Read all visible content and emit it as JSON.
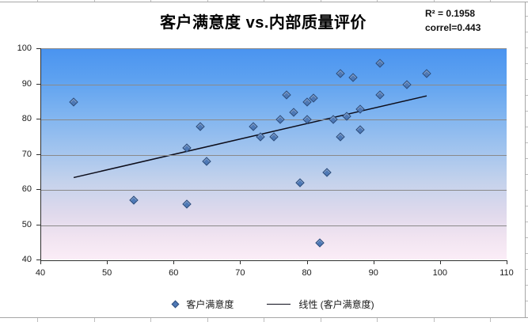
{
  "title": "客户满意度 vs.内部质量评价",
  "annotation": {
    "line1": "R² = 0.1958",
    "line2": "correl=0.443"
  },
  "legend": {
    "items": [
      {
        "label": "客户满意度",
        "marker": "diamond"
      },
      {
        "label": "线性 (客户满意度)",
        "marker": "line"
      }
    ]
  },
  "chart_data": {
    "type": "scatter",
    "title": "客户满意度 vs.内部质量评价",
    "xlabel": "",
    "ylabel": "",
    "xlim": [
      40,
      110
    ],
    "ylim": [
      40,
      100
    ],
    "x_ticks": [
      40,
      50,
      60,
      70,
      80,
      90,
      100,
      110
    ],
    "y_ticks": [
      40,
      50,
      60,
      70,
      80,
      90,
      100
    ],
    "grid": true,
    "legend_position": "bottom",
    "annotations": [
      "R² = 0.1958",
      "correl=0.443"
    ],
    "series": [
      {
        "name": "客户满意度",
        "points": [
          [
            45,
            85
          ],
          [
            54,
            57
          ],
          [
            62,
            56
          ],
          [
            62,
            72
          ],
          [
            64,
            78
          ],
          [
            65,
            68
          ],
          [
            72,
            78
          ],
          [
            73,
            75
          ],
          [
            75,
            75
          ],
          [
            76,
            80
          ],
          [
            77,
            87
          ],
          [
            78,
            82
          ],
          [
            79,
            62
          ],
          [
            80,
            80
          ],
          [
            80,
            85
          ],
          [
            81,
            86
          ],
          [
            82,
            45
          ],
          [
            83,
            65
          ],
          [
            84,
            80
          ],
          [
            85,
            75
          ],
          [
            85,
            93
          ],
          [
            86,
            81
          ],
          [
            87,
            92
          ],
          [
            88,
            77
          ],
          [
            88,
            83
          ],
          [
            91,
            87
          ],
          [
            91,
            96
          ],
          [
            95,
            90
          ],
          [
            98,
            93
          ]
        ]
      }
    ],
    "trendline": {
      "name": "线性 (客户满意度)",
      "x1": 45,
      "y1": 63.5,
      "x2": 98,
      "y2": 86.7
    },
    "colors": {
      "marker": "#4e79b6",
      "marker_border": "#2e4d7b",
      "trendline": "#0d0d1a",
      "gridline": "#8a8a8a",
      "plot_gradient_top": "#4a94f0",
      "plot_gradient_bottom": "#fbedf7"
    }
  }
}
